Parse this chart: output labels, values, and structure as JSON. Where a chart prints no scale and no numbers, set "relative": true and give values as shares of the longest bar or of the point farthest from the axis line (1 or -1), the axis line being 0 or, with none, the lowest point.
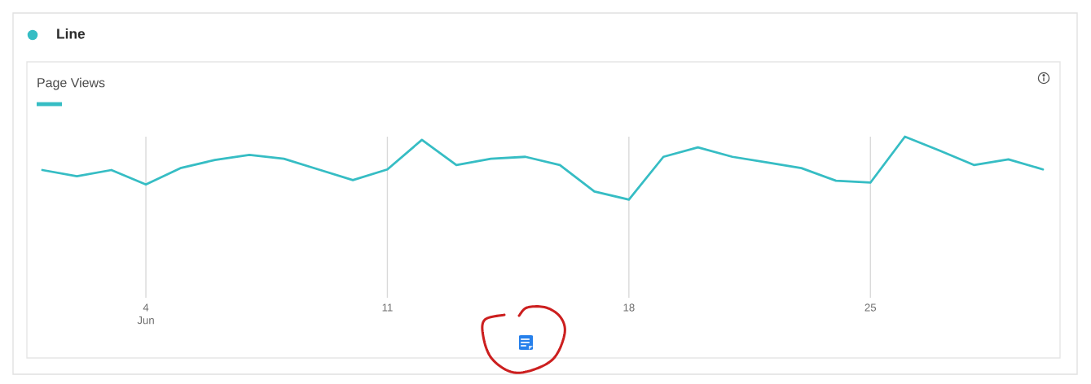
{
  "chart_data": {
    "type": "line",
    "title": "Line",
    "categories": [
      null,
      null,
      null,
      "4\nJun",
      null,
      null,
      null,
      null,
      null,
      null,
      "11",
      null,
      null,
      null,
      null,
      null,
      null,
      "18",
      null,
      null,
      null,
      null,
      null,
      null,
      "25",
      null,
      null,
      null,
      null,
      null
    ],
    "series": [
      {
        "name": "Page Views",
        "color": "#36bdc4",
        "values": [
          0.47,
          0.37,
          0.47,
          0.24,
          0.5,
          0.63,
          0.71,
          0.65,
          0.48,
          0.31,
          0.48,
          0.95,
          0.55,
          0.65,
          0.68,
          0.55,
          0.13,
          0,
          0.68,
          0.83,
          0.68,
          0.59,
          0.5,
          0.3,
          0.27,
          1,
          0.78,
          0.55,
          0.64,
          0.48
        ]
      }
    ],
    "relative": true,
    "grid": "x",
    "legend": "top left"
  }
}
